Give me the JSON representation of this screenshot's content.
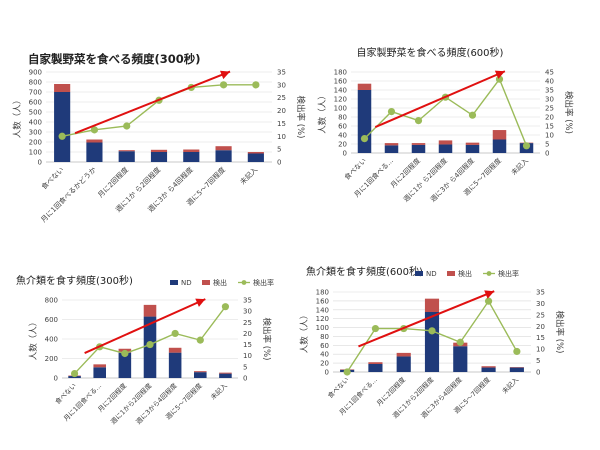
{
  "colors": {
    "nd": "#1f3a7a",
    "detect": "#c0504d",
    "rate": "#9bbb59",
    "trend": "#e01010",
    "grid": "#d9d9d9",
    "text": "#404040"
  },
  "chart_data": [
    {
      "type": "bar",
      "stacked": true,
      "title": "自家製野菜を食べる頻度(300秒)",
      "categories": [
        "食べない",
        "月に1回食べるかどうか",
        "月に2回程度",
        "週に1か ら2回程度",
        "週に3か ら4回程度",
        "週に5〜7回程度",
        "未記入"
      ],
      "series": [
        {
          "name": "ND",
          "values": [
            700,
            195,
            108,
            100,
            100,
            118,
            85
          ]
        },
        {
          "name": "検出",
          "values": [
            80,
            30,
            10,
            22,
            25,
            40,
            15
          ]
        }
      ],
      "line": {
        "name": "検出率",
        "values": [
          10,
          12.5,
          14,
          24,
          29,
          30,
          30
        ]
      },
      "ylabel": "人数（人）",
      "y2label": "検出率 (%)",
      "ylim": [
        0,
        900
      ],
      "yticks": [
        0,
        100,
        200,
        300,
        400,
        500,
        600,
        700,
        800,
        900
      ],
      "y2lim": [
        0,
        35
      ],
      "y2ticks": [
        0,
        5,
        10,
        15,
        20,
        25,
        30,
        35
      ],
      "legend": "none",
      "trend_arrow": "red arrow rising from left to right"
    },
    {
      "type": "bar",
      "stacked": true,
      "title": "自家製野菜を食べる頻度(600秒)",
      "categories": [
        "食べない",
        "月に1回食べる...",
        "月に2回程度",
        "週に1か ら2回程度",
        "週に3か ら4回程度",
        "週に5〜7回程度",
        "未記入"
      ],
      "series": [
        {
          "name": "ND",
          "values": [
            140,
            17,
            18,
            19,
            18,
            30,
            22
          ]
        },
        {
          "name": "検出",
          "values": [
            14,
            5,
            4,
            9,
            5,
            21,
            1
          ]
        }
      ],
      "line": {
        "name": "検出率",
        "values": [
          8,
          23,
          18,
          31,
          21,
          41,
          4
        ]
      },
      "ylabel": "人数（人）",
      "y2label": "検出率 (%)",
      "ylim": [
        0,
        180
      ],
      "yticks": [
        0,
        20,
        40,
        60,
        80,
        100,
        120,
        140,
        160,
        180
      ],
      "y2lim": [
        0,
        45
      ],
      "y2ticks": [
        0,
        5,
        10,
        15,
        20,
        25,
        30,
        35,
        40,
        45
      ],
      "legend": "none",
      "trend_arrow": "red arrow rising from left to right"
    },
    {
      "type": "bar",
      "stacked": true,
      "title": "魚介類を食す頻度(300秒)",
      "categories": [
        "食べない",
        "月に1回食べる...",
        "月に2回程度",
        "週に1から2回程度",
        "週に3から4回程度",
        "週に5〜7回程度",
        "未記入"
      ],
      "series": [
        {
          "name": "ND",
          "values": [
            20,
            110,
            260,
            630,
            260,
            60,
            45
          ]
        },
        {
          "name": "検出",
          "values": [
            5,
            30,
            40,
            120,
            50,
            10,
            10
          ]
        }
      ],
      "line": {
        "name": "検出率",
        "values": [
          2,
          14,
          11,
          15,
          20,
          17,
          32
        ]
      },
      "ylabel": "人数（人）",
      "y2label": "検出率 (%)",
      "ylim": [
        0,
        800
      ],
      "yticks": [
        0,
        200,
        400,
        600,
        800
      ],
      "y2lim": [
        0,
        35
      ],
      "y2ticks": [
        0,
        5,
        10,
        15,
        20,
        25,
        30,
        35
      ],
      "legend": "top",
      "trend_arrow": "red arrow rising from left to right"
    },
    {
      "type": "bar",
      "stacked": true,
      "title": "魚介類を食す頻度(600秒)",
      "categories": [
        "食べない",
        "月に1回食べる...",
        "月に2回程度",
        "週に1から2回程度",
        "週に3から4回程度",
        "週に5〜7回程度",
        "未記入"
      ],
      "series": [
        {
          "name": "ND",
          "values": [
            5,
            18,
            35,
            135,
            58,
            10,
            10
          ]
        },
        {
          "name": "検出",
          "values": [
            1,
            4,
            8,
            30,
            8,
            3,
            1
          ]
        }
      ],
      "line": {
        "name": "検出率",
        "values": [
          0,
          19,
          19,
          18,
          13,
          31,
          9
        ]
      },
      "ylabel": "人数（人）",
      "y2label": "検出率 (%)",
      "ylim": [
        0,
        180
      ],
      "yticks": [
        0,
        20,
        40,
        60,
        80,
        100,
        120,
        140,
        160,
        180
      ],
      "y2lim": [
        0,
        35
      ],
      "y2ticks": [
        0,
        5,
        10,
        15,
        20,
        25,
        30,
        35
      ],
      "legend": "top",
      "trend_arrow": "red arrow rising from left to right"
    }
  ]
}
